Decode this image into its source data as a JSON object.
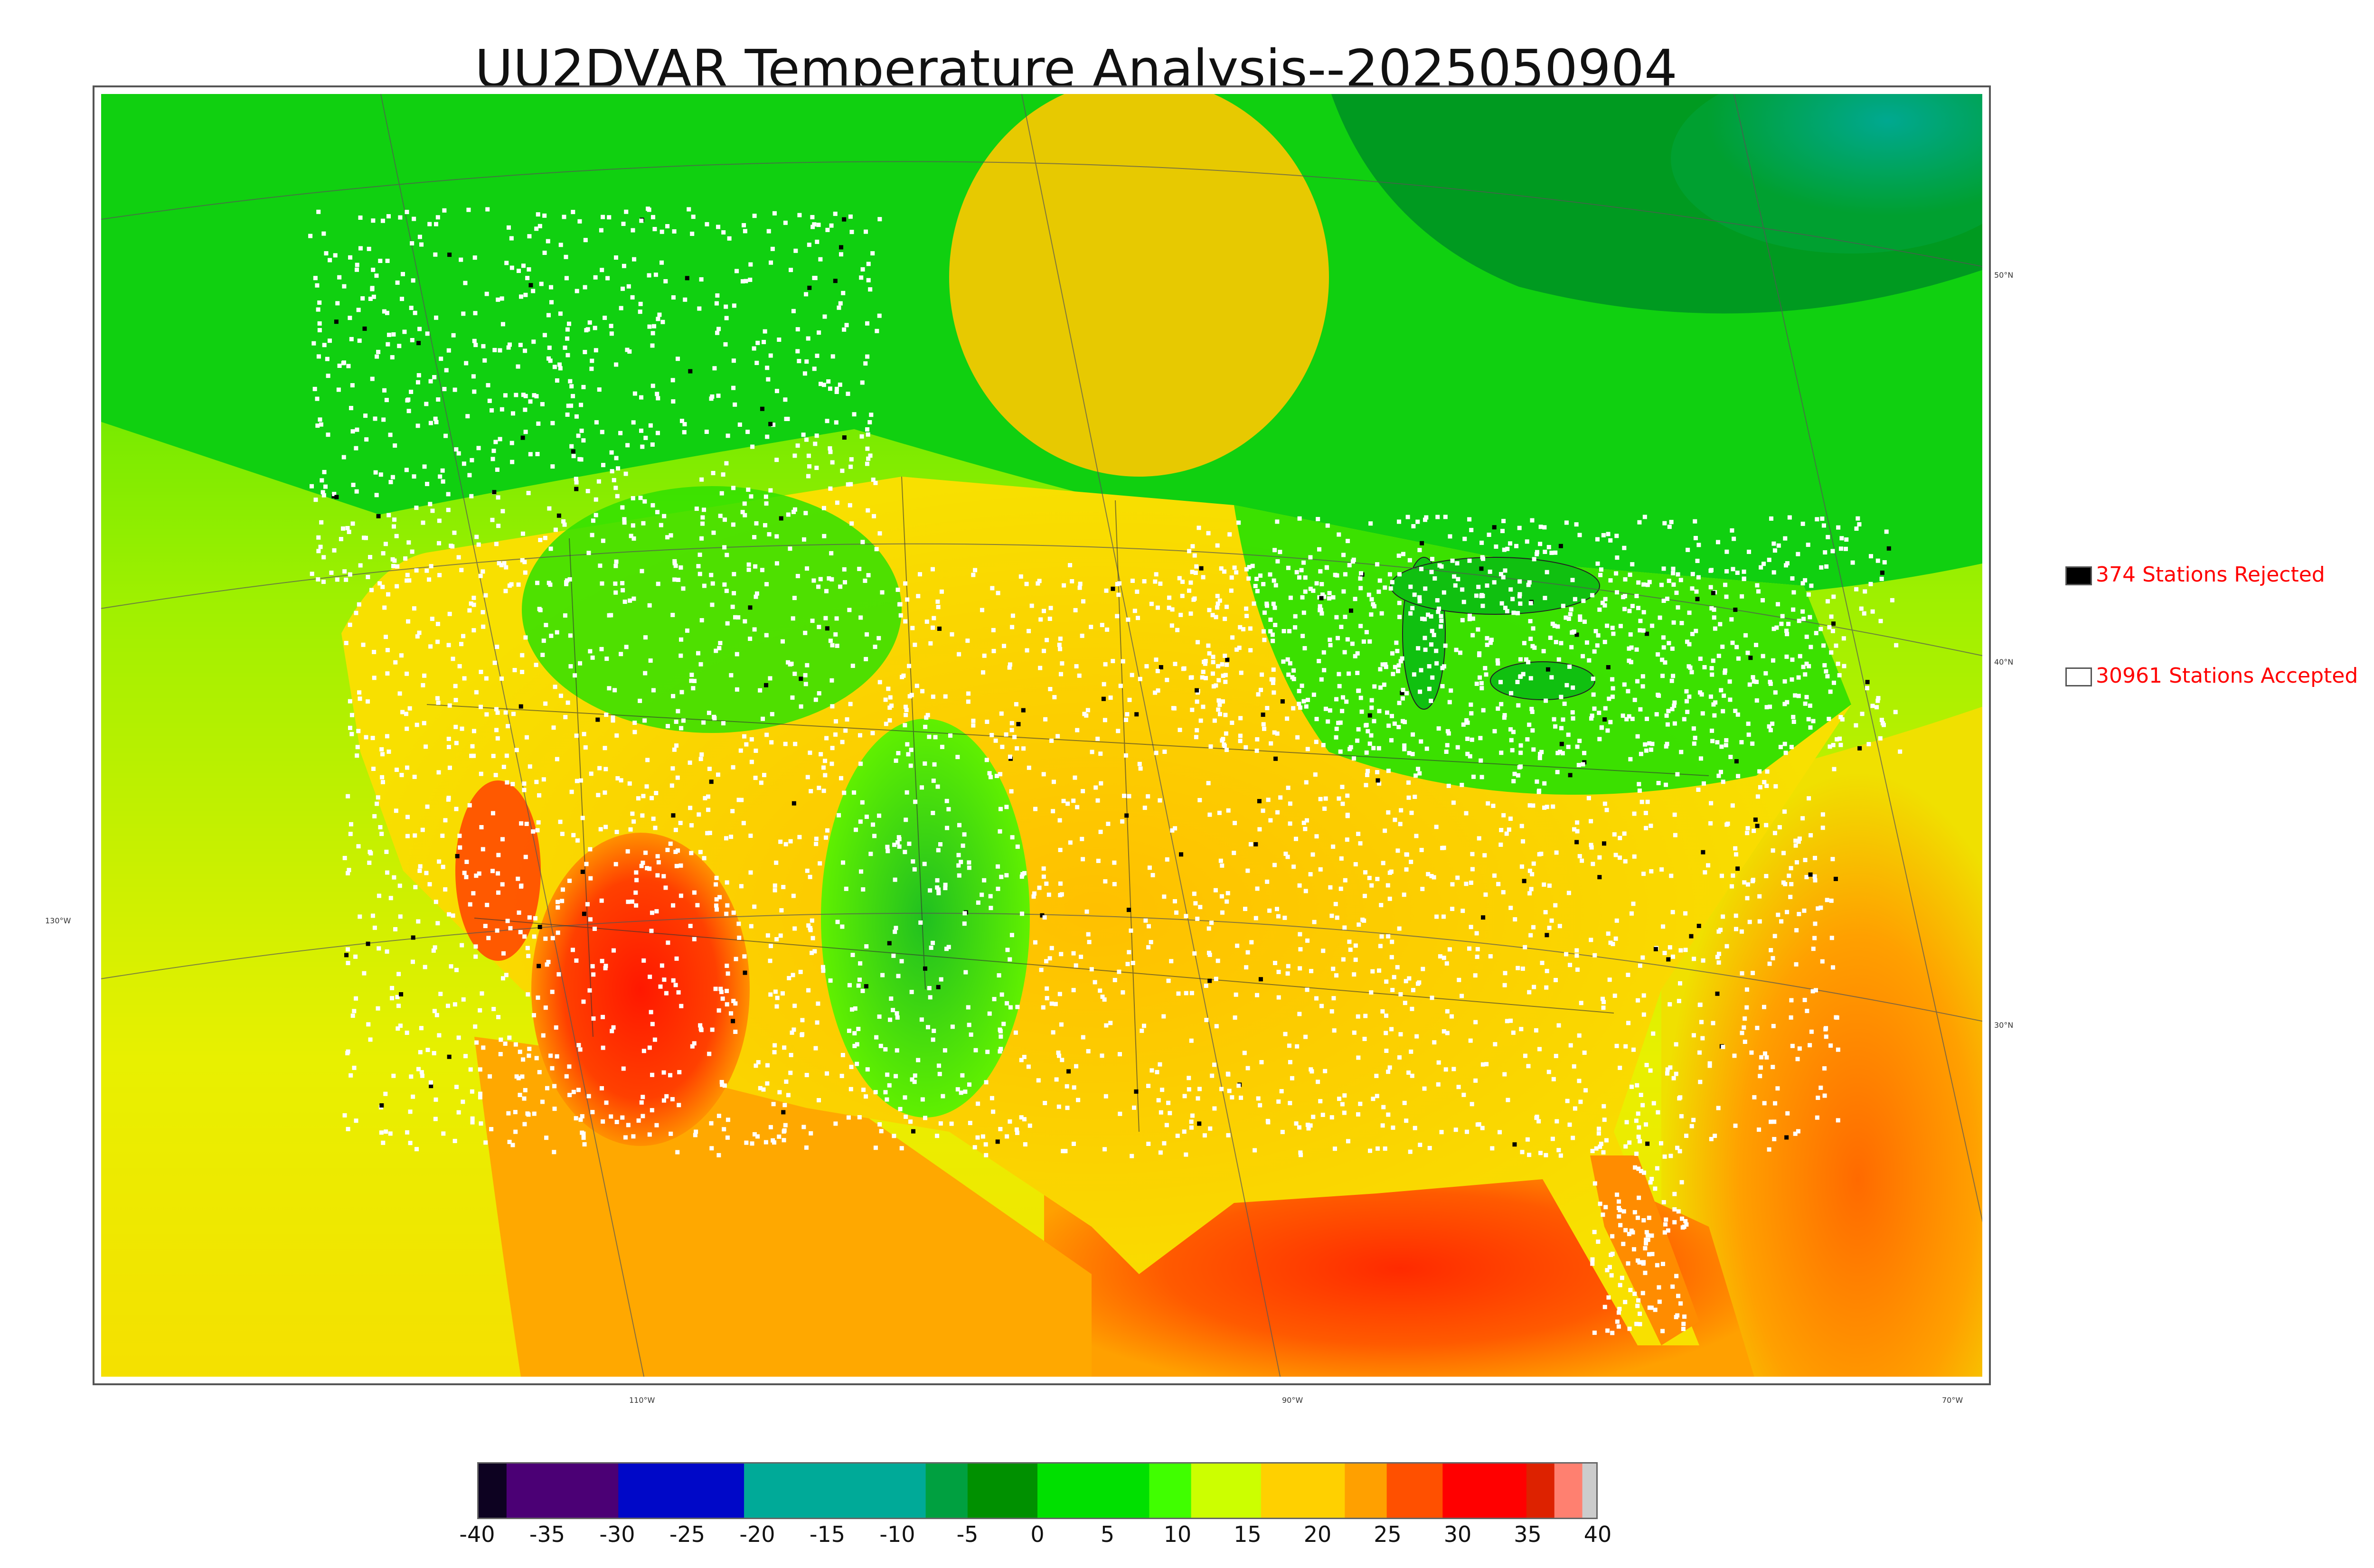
{
  "title": "UU2DVAR Temperature Analysis--2025050904",
  "map": {
    "lat_labels": [
      {
        "text": "50°N",
        "lat": 50
      },
      {
        "text": "40°N",
        "lat": 40
      },
      {
        "text": "30°N",
        "lat": 30
      }
    ],
    "lon_labels": [
      {
        "text": "130°W",
        "lon": -130
      },
      {
        "text": "110°W",
        "lon": -110
      },
      {
        "text": "90°W",
        "lon": -90
      },
      {
        "text": "70°W",
        "lon": -70
      }
    ],
    "station_markers": {
      "accepted_color": "#ffffff",
      "rejected_color": "#000000"
    }
  },
  "legend": {
    "rejected": {
      "label": "374 Stations Rejected",
      "swatch_color": "#000000"
    },
    "accepted": {
      "label": "30961 Stations Accepted",
      "swatch_color": "#ffffff"
    },
    "text_color": "#ff0000"
  },
  "colorbar": {
    "ticks": [
      "-40",
      "-35",
      "-30",
      "-25",
      "-20",
      "-15",
      "-10",
      "-5",
      "0",
      "5",
      "10",
      "15",
      "20",
      "25",
      "30",
      "35",
      "40"
    ],
    "range": [
      -40,
      40
    ],
    "segments": [
      {
        "from": -40,
        "to": -38,
        "color": "#0d0221"
      },
      {
        "from": -38,
        "to": -30,
        "color": "#4b0075"
      },
      {
        "from": -30,
        "to": -21,
        "color": "#0008c8"
      },
      {
        "from": -21,
        "to": -8,
        "color": "#00aa98"
      },
      {
        "from": -8,
        "to": -5,
        "color": "#00a040"
      },
      {
        "from": -5,
        "to": 0,
        "color": "#009000"
      },
      {
        "from": 0,
        "to": 8,
        "color": "#00e000"
      },
      {
        "from": 8,
        "to": 11,
        "color": "#40ff00"
      },
      {
        "from": 11,
        "to": 16,
        "color": "#ccff00"
      },
      {
        "from": 16,
        "to": 22,
        "color": "#ffd000"
      },
      {
        "from": 22,
        "to": 25,
        "color": "#ffa000"
      },
      {
        "from": 25,
        "to": 29,
        "color": "#ff5000"
      },
      {
        "from": 29,
        "to": 35,
        "color": "#ff0000"
      },
      {
        "from": 35,
        "to": 37,
        "color": "#dd2200"
      },
      {
        "from": 37,
        "to": 39,
        "color": "#ff8070"
      },
      {
        "from": 39,
        "to": 40,
        "color": "#cccccc"
      }
    ]
  }
}
